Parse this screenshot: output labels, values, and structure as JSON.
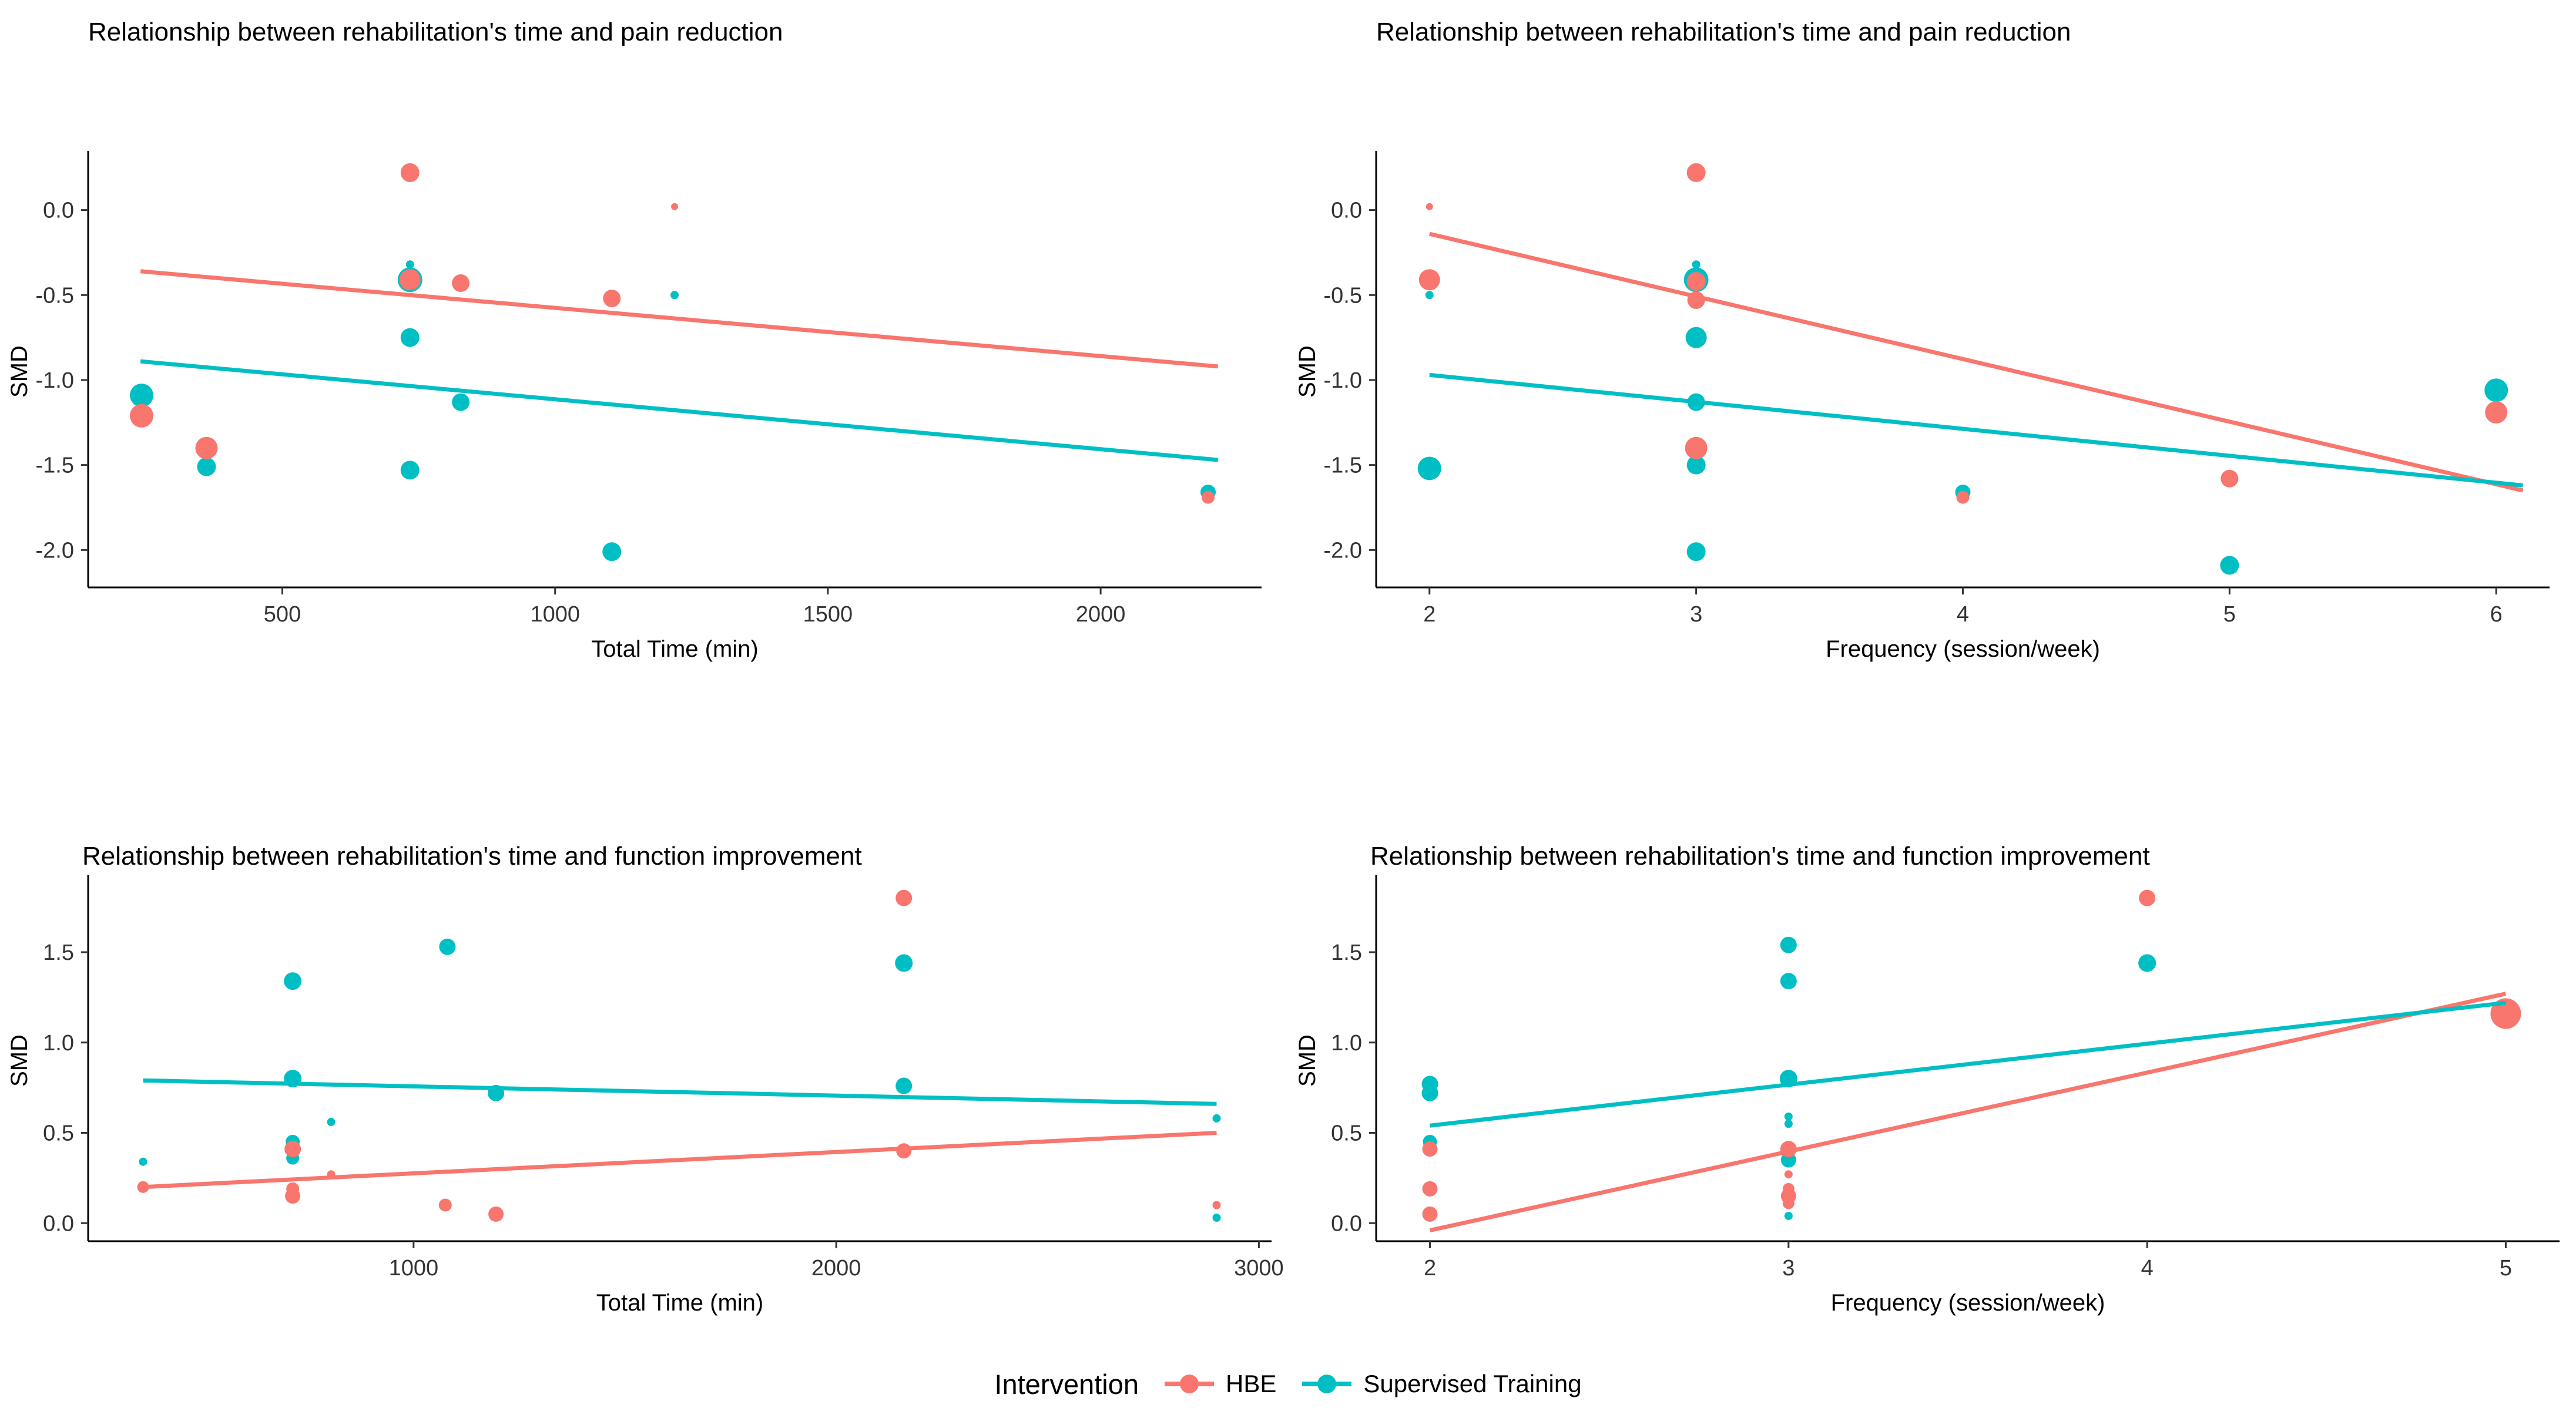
{
  "legend": {
    "title": "Intervention",
    "items": [
      {
        "label": "HBE",
        "color": "#F8766D"
      },
      {
        "label": "Supervised Training",
        "color": "#00BFC4"
      }
    ]
  },
  "text_color": "#000000",
  "tick_color": "#333333",
  "chart_data": [
    {
      "type": "scatter",
      "id": "pain-total-time",
      "title": "Relationship between rehabilitation's time and pain reduction",
      "xlabel": "Total Time (min)",
      "ylabel": "SMD",
      "xlim": [
        144,
        2295
      ],
      "ylim": [
        -2.22,
        0.32
      ],
      "xticks": {
        "values": [
          500,
          1000,
          1500,
          2000
        ],
        "labels": [
          "500",
          "1000",
          "1500",
          "2000"
        ]
      },
      "yticks": {
        "values": [
          0.0,
          -0.5,
          -1.0,
          -1.5,
          -2.0
        ],
        "labels": [
          "0.0",
          "-0.5",
          "-1.0",
          "-1.5",
          "-2.0"
        ]
      },
      "grid": false,
      "series": [
        {
          "name": "Supervised Training",
          "color": "#00BFC4",
          "points": [
            [
              242,
              -1.09,
              20
            ],
            [
              361,
              -1.51,
              16
            ],
            [
              734,
              -0.32,
              7
            ],
            [
              734,
              -0.41,
              21
            ],
            [
              734,
              -0.75,
              16
            ],
            [
              734,
              -1.53,
              16
            ],
            [
              827,
              -1.13,
              15
            ],
            [
              1104,
              -2.01,
              16
            ],
            [
              1219,
              -0.5,
              7
            ],
            [
              2197,
              -1.66,
              13
            ]
          ]
        },
        {
          "name": "HBE",
          "color": "#F8766D",
          "points": [
            [
              242,
              -1.21,
              20
            ],
            [
              361,
              -1.4,
              19
            ],
            [
              734,
              0.22,
              16
            ],
            [
              734,
              -0.41,
              18
            ],
            [
              827,
              -0.43,
              15
            ],
            [
              1104,
              -0.52,
              15
            ],
            [
              1219,
              0.02,
              6
            ],
            [
              2197,
              -1.69,
              11
            ]
          ]
        }
      ],
      "trend_lines": [
        {
          "name": "HBE",
          "color": "#F8766D",
          "x1": 240,
          "y1": -0.36,
          "x2": 2215,
          "y2": -0.92
        },
        {
          "name": "Supervised Training",
          "color": "#00BFC4",
          "x1": 240,
          "y1": -0.89,
          "x2": 2215,
          "y2": -1.47
        }
      ]
    },
    {
      "type": "scatter",
      "id": "pain-frequency",
      "title": "Relationship between rehabilitation's time and pain reduction",
      "xlabel": "Frequency (session/week)",
      "ylabel": "SMD",
      "xlim": [
        1.8,
        6.2
      ],
      "ylim": [
        -2.22,
        0.32
      ],
      "xticks": {
        "values": [
          2,
          3,
          4,
          5,
          6
        ],
        "labels": [
          "2",
          "3",
          "4",
          "5",
          "6"
        ]
      },
      "yticks": {
        "values": [
          0.0,
          -0.5,
          -1.0,
          -1.5,
          -2.0
        ],
        "labels": [
          "0.0",
          "-0.5",
          "-1.0",
          "-1.5",
          "-2.0"
        ]
      },
      "grid": false,
      "series": [
        {
          "name": "Supervised Training",
          "color": "#00BFC4",
          "points": [
            [
              2,
              -0.5,
              7
            ],
            [
              2,
              -1.52,
              20
            ],
            [
              3,
              -0.32,
              7
            ],
            [
              3,
              -0.41,
              21
            ],
            [
              3,
              -0.75,
              18
            ],
            [
              3,
              -1.13,
              15
            ],
            [
              3,
              -1.5,
              16
            ],
            [
              3,
              -2.01,
              16
            ],
            [
              4,
              -1.66,
              13
            ],
            [
              5,
              -2.09,
              16
            ],
            [
              6,
              -1.06,
              20
            ]
          ]
        },
        {
          "name": "HBE",
          "color": "#F8766D",
          "points": [
            [
              2,
              0.02,
              6
            ],
            [
              2,
              -0.41,
              18
            ],
            [
              3,
              0.22,
              16
            ],
            [
              3,
              -0.42,
              16
            ],
            [
              3,
              -0.53,
              15
            ],
            [
              3,
              -1.4,
              19
            ],
            [
              4,
              -1.69,
              11
            ],
            [
              5,
              -1.58,
              15
            ],
            [
              6,
              -1.19,
              19
            ]
          ]
        }
      ],
      "trend_lines": [
        {
          "name": "HBE",
          "color": "#F8766D",
          "x1": 2,
          "y1": -0.14,
          "x2": 6.1,
          "y2": -1.65
        },
        {
          "name": "Supervised Training",
          "color": "#00BFC4",
          "x1": 2,
          "y1": -0.97,
          "x2": 6.1,
          "y2": -1.62
        }
      ]
    },
    {
      "type": "scatter",
      "id": "function-total-time",
      "title": "Relationship between rehabilitation's time and function improvement",
      "xlabel": "Total Time (min)",
      "ylabel": "SMD",
      "xlim": [
        230,
        3030
      ],
      "ylim": [
        -0.1,
        1.9
      ],
      "xticks": {
        "values": [
          1000,
          2000,
          3000
        ],
        "labels": [
          "1000",
          "2000",
          "3000"
        ]
      },
      "yticks": {
        "values": [
          1.5,
          1.0,
          0.5,
          0.0
        ],
        "labels": [
          "1.5",
          "1.0",
          "0.5",
          "0.0"
        ]
      },
      "grid": false,
      "series": [
        {
          "name": "Supervised Training",
          "color": "#00BFC4",
          "points": [
            [
              360,
              0.34,
              7
            ],
            [
              714,
              1.34,
              15
            ],
            [
              714,
              0.8,
              15
            ],
            [
              714,
              0.45,
              12
            ],
            [
              714,
              0.36,
              11
            ],
            [
              805,
              0.56,
              7
            ],
            [
              1080,
              1.53,
              14
            ],
            [
              1195,
              0.72,
              14
            ],
            [
              2160,
              1.44,
              15
            ],
            [
              2160,
              0.76,
              14
            ],
            [
              2900,
              0.58,
              7
            ],
            [
              2900,
              0.03,
              7
            ]
          ]
        },
        {
          "name": "HBE",
          "color": "#F8766D",
          "points": [
            [
              360,
              0.2,
              10
            ],
            [
              714,
              0.41,
              14
            ],
            [
              714,
              0.19,
              11
            ],
            [
              714,
              0.15,
              13
            ],
            [
              805,
              0.27,
              7
            ],
            [
              1075,
              0.1,
              11
            ],
            [
              1195,
              0.05,
              13
            ],
            [
              2160,
              1.8,
              14
            ],
            [
              2160,
              0.4,
              13
            ],
            [
              2900,
              0.1,
              7
            ]
          ]
        }
      ],
      "trend_lines": [
        {
          "name": "HBE",
          "color": "#F8766D",
          "x1": 360,
          "y1": 0.2,
          "x2": 2900,
          "y2": 0.5
        },
        {
          "name": "Supervised Training",
          "color": "#00BFC4",
          "x1": 360,
          "y1": 0.79,
          "x2": 2900,
          "y2": 0.66
        }
      ]
    },
    {
      "type": "scatter",
      "id": "function-frequency",
      "title": "Relationship between rehabilitation's time and function improvement",
      "xlabel": "Frequency (session/week)",
      "ylabel": "SMD",
      "xlim": [
        1.85,
        5.15
      ],
      "ylim": [
        -0.1,
        1.9
      ],
      "xticks": {
        "values": [
          2,
          3,
          4,
          5
        ],
        "labels": [
          "2",
          "3",
          "4",
          "5"
        ]
      },
      "yticks": {
        "values": [
          1.5,
          1.0,
          0.5,
          0.0
        ],
        "labels": [
          "1.5",
          "1.0",
          "0.5",
          "0.0"
        ]
      },
      "grid": false,
      "series": [
        {
          "name": "Supervised Training",
          "color": "#00BFC4",
          "points": [
            [
              2,
              0.77,
              14
            ],
            [
              2,
              0.72,
              14
            ],
            [
              2,
              0.45,
              12
            ],
            [
              3,
              1.54,
              14
            ],
            [
              3,
              1.34,
              14
            ],
            [
              3,
              0.8,
              15
            ],
            [
              3,
              0.59,
              7
            ],
            [
              3,
              0.55,
              7
            ],
            [
              3,
              0.35,
              13
            ],
            [
              3,
              0.04,
              7
            ],
            [
              4,
              1.44,
              15
            ],
            [
              5,
              1.13,
              11
            ]
          ]
        },
        {
          "name": "HBE",
          "color": "#F8766D",
          "points": [
            [
              2,
              0.41,
              13
            ],
            [
              2,
              0.19,
              13
            ],
            [
              2,
              0.05,
              13
            ],
            [
              3,
              0.41,
              14
            ],
            [
              3,
              0.27,
              7
            ],
            [
              3,
              0.19,
              10
            ],
            [
              3,
              0.15,
              13
            ],
            [
              3,
              0.11,
              10
            ],
            [
              4,
              1.8,
              14
            ],
            [
              5,
              1.16,
              26
            ]
          ]
        }
      ],
      "trend_lines": [
        {
          "name": "HBE",
          "color": "#F8766D",
          "x1": 2,
          "y1": -0.04,
          "x2": 5,
          "y2": 1.27
        },
        {
          "name": "Supervised Training",
          "color": "#00BFC4",
          "x1": 2,
          "y1": 0.54,
          "x2": 5,
          "y2": 1.22
        }
      ]
    }
  ]
}
